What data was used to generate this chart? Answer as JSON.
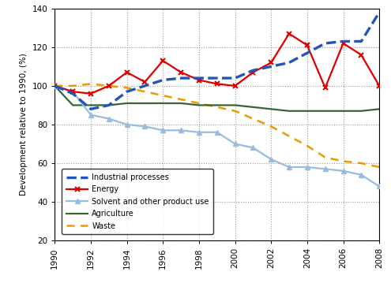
{
  "years": [
    1990,
    1991,
    1992,
    1993,
    1994,
    1995,
    1996,
    1997,
    1998,
    1999,
    2000,
    2001,
    2002,
    2003,
    2004,
    2005,
    2006,
    2007,
    2008
  ],
  "industrial_processes": [
    100,
    96,
    88,
    90,
    97,
    100,
    103,
    104,
    104,
    104,
    104,
    108,
    110,
    112,
    117,
    122,
    123,
    123,
    138
  ],
  "energy": [
    100,
    97,
    96,
    100,
    107,
    102,
    113,
    107,
    103,
    101,
    100,
    107,
    112,
    127,
    121,
    99,
    122,
    116,
    100
  ],
  "solvent": [
    100,
    97,
    85,
    83,
    80,
    79,
    77,
    77,
    76,
    76,
    70,
    68,
    62,
    58,
    58,
    57,
    56,
    54,
    48
  ],
  "agriculture": [
    100,
    90,
    90,
    90,
    91,
    91,
    91,
    91,
    90,
    90,
    90,
    89,
    88,
    87,
    87,
    87,
    87,
    87,
    88
  ],
  "waste": [
    100,
    100,
    101,
    100,
    99,
    97,
    95,
    93,
    91,
    89,
    87,
    83,
    79,
    74,
    69,
    63,
    61,
    60,
    58
  ],
  "ylim": [
    20,
    140
  ],
  "yticks": [
    20,
    40,
    60,
    80,
    100,
    120,
    140
  ],
  "xticks": [
    1990,
    1992,
    1994,
    1996,
    1998,
    2000,
    2002,
    2004,
    2006,
    2008
  ],
  "ylabel": "Development relative to 1990, (%)",
  "industrial_color": "#2255bb",
  "energy_color": "#dd0000",
  "solvent_color": "#99bbdd",
  "agriculture_color": "#336633",
  "waste_color": "#ee9900",
  "bg_color": "#ffffff",
  "grid_color": "#999999"
}
